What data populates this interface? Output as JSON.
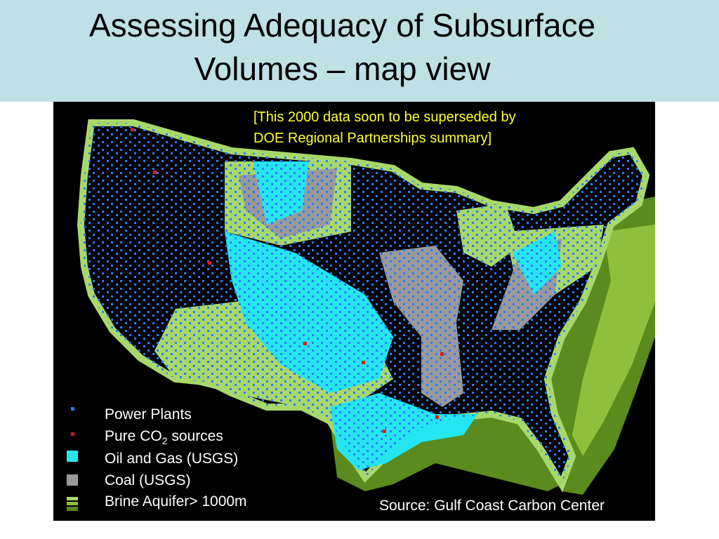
{
  "header": {
    "title_lines": [
      "Assessing Adequacy of Subsurface",
      "Volumes – map view"
    ]
  },
  "map": {
    "note_lines": [
      "[This 2000 data soon to be superseded by",
      "DOE Regional Partnerships summary]"
    ],
    "source": "Source: Gulf Coast Carbon Center",
    "legend": [
      {
        "text": "Power Plants"
      },
      {
        "text": "Pure CO",
        "sub": "2",
        "after": " sources"
      },
      {
        "text": "Oil and Gas (USGS)"
      },
      {
        "text": "Coal (USGS)"
      },
      {
        "text": "Brine Aquifer> 1000m"
      }
    ]
  }
}
